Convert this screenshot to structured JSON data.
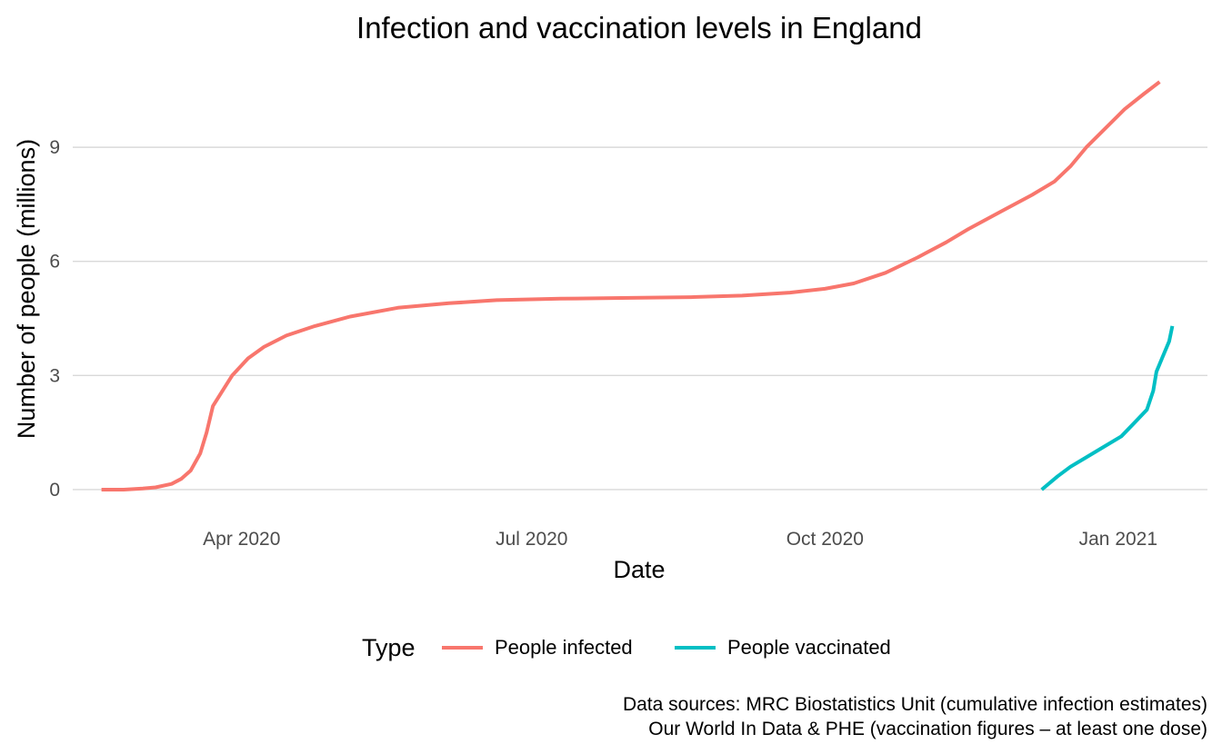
{
  "chart_data": {
    "type": "line",
    "title": "Infection and vaccination levels in England",
    "xlabel": "Date",
    "ylabel": "Number of people (millions)",
    "x_ticks": [
      {
        "date": "2020-04-01",
        "label": "Apr 2020"
      },
      {
        "date": "2020-07-01",
        "label": "Jul 2020"
      },
      {
        "date": "2020-10-01",
        "label": "Oct 2020"
      },
      {
        "date": "2021-01-01",
        "label": "Jan 2021"
      }
    ],
    "y_ticks": [
      {
        "value": 0,
        "label": "0"
      },
      {
        "value": 3,
        "label": "3"
      },
      {
        "value": 6,
        "label": "6"
      },
      {
        "value": 9,
        "label": "9"
      }
    ],
    "xlim": [
      "2020-02-08",
      "2021-01-29"
    ],
    "ylim": [
      -0.55,
      11.2
    ],
    "grid": "horizontal major gridlines only",
    "legend": {
      "title": "Type",
      "position": "bottom"
    },
    "caption": [
      "Data sources: MRC Biostatistics Unit (cumulative infection estimates)",
      "Our World In Data & PHE (vaccination figures – at least one dose)"
    ],
    "series": [
      {
        "name": "People infected",
        "color": "#F8766D",
        "points": [
          [
            "2020-02-17",
            0.0
          ],
          [
            "2020-02-24",
            0.0
          ],
          [
            "2020-03-01",
            0.03
          ],
          [
            "2020-03-05",
            0.06
          ],
          [
            "2020-03-10",
            0.15
          ],
          [
            "2020-03-13",
            0.28
          ],
          [
            "2020-03-16",
            0.5
          ],
          [
            "2020-03-19",
            0.95
          ],
          [
            "2020-03-21",
            1.5
          ],
          [
            "2020-03-23",
            2.2
          ],
          [
            "2020-03-26",
            2.6
          ],
          [
            "2020-03-29",
            3.0
          ],
          [
            "2020-04-03",
            3.45
          ],
          [
            "2020-04-08",
            3.75
          ],
          [
            "2020-04-15",
            4.05
          ],
          [
            "2020-04-24",
            4.3
          ],
          [
            "2020-05-05",
            4.55
          ],
          [
            "2020-05-20",
            4.78
          ],
          [
            "2020-06-05",
            4.9
          ],
          [
            "2020-06-20",
            4.98
          ],
          [
            "2020-07-10",
            5.02
          ],
          [
            "2020-08-01",
            5.04
          ],
          [
            "2020-08-20",
            5.06
          ],
          [
            "2020-09-05",
            5.1
          ],
          [
            "2020-09-20",
            5.18
          ],
          [
            "2020-10-01",
            5.28
          ],
          [
            "2020-10-10",
            5.42
          ],
          [
            "2020-10-20",
            5.7
          ],
          [
            "2020-10-30",
            6.1
          ],
          [
            "2020-11-08",
            6.5
          ],
          [
            "2020-11-15",
            6.85
          ],
          [
            "2020-11-25",
            7.3
          ],
          [
            "2020-12-05",
            7.75
          ],
          [
            "2020-12-12",
            8.1
          ],
          [
            "2020-12-17",
            8.5
          ],
          [
            "2020-12-22",
            9.0
          ],
          [
            "2020-12-28",
            9.5
          ],
          [
            "2021-01-03",
            10.0
          ],
          [
            "2021-01-09",
            10.4
          ],
          [
            "2021-01-14",
            10.72
          ]
        ]
      },
      {
        "name": "People vaccinated",
        "color": "#00BFC4",
        "points": [
          [
            "2020-12-08",
            0.0
          ],
          [
            "2020-12-13",
            0.35
          ],
          [
            "2020-12-17",
            0.6
          ],
          [
            "2020-12-22",
            0.85
          ],
          [
            "2020-12-27",
            1.1
          ],
          [
            "2021-01-02",
            1.4
          ],
          [
            "2021-01-06",
            1.75
          ],
          [
            "2021-01-10",
            2.1
          ],
          [
            "2021-01-12",
            2.6
          ],
          [
            "2021-01-13",
            3.1
          ],
          [
            "2021-01-15",
            3.5
          ],
          [
            "2021-01-17",
            3.9
          ],
          [
            "2021-01-18",
            4.3
          ]
        ]
      }
    ]
  }
}
